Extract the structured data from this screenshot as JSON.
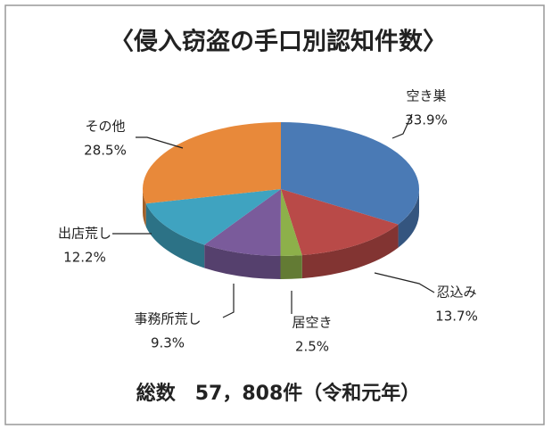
{
  "chart_data": {
    "type": "pie",
    "title": "〈侵入窃盗の手口別認知件数〉",
    "categories": [
      "空き巣",
      "忍込み",
      "居空き",
      "事務所荒し",
      "出店荒し",
      "その他"
    ],
    "values": [
      33.9,
      13.7,
      2.5,
      9.3,
      12.2,
      28.5
    ],
    "value_labels": [
      "33.9%",
      "13.7%",
      "2.5%",
      "9.3%",
      "12.2%",
      "28.5%"
    ],
    "colors": [
      "#4a7ab5",
      "#b94a48",
      "#8db04a",
      "#7a5b9b",
      "#3fa3c0",
      "#e8893a"
    ],
    "footnote": "総数　57，808件（令和元年）"
  }
}
